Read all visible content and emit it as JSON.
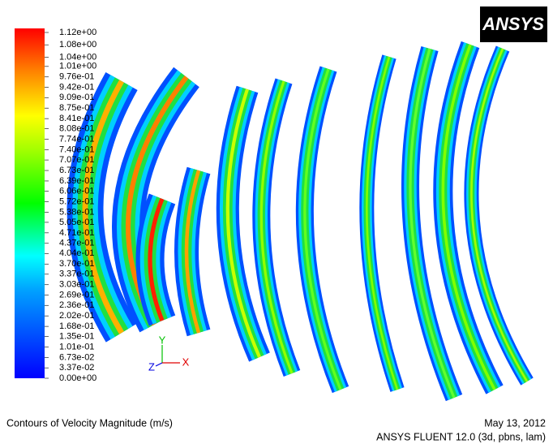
{
  "logo": "ANSYS",
  "colorbar": {
    "ticks": [
      {
        "value": 1.12,
        "label": "1.12e+00"
      },
      {
        "value": 1.08,
        "label": "1.08e+00"
      },
      {
        "value": 1.04,
        "label": "1.04e+00"
      },
      {
        "value": 1.01,
        "label": "1.01e+00"
      },
      {
        "value": 0.976,
        "label": "9.76e-01"
      },
      {
        "value": 0.942,
        "label": "9.42e-01"
      },
      {
        "value": 0.909,
        "label": "9.09e-01"
      },
      {
        "value": 0.875,
        "label": "8.75e-01"
      },
      {
        "value": 0.841,
        "label": "8.41e-01"
      },
      {
        "value": 0.808,
        "label": "8.08e-01"
      },
      {
        "value": 0.774,
        "label": "7.74e-01"
      },
      {
        "value": 0.74,
        "label": "7.40e-01"
      },
      {
        "value": 0.707,
        "label": "7.07e-01"
      },
      {
        "value": 0.673,
        "label": "6.73e-01"
      },
      {
        "value": 0.639,
        "label": "6.39e-01"
      },
      {
        "value": 0.606,
        "label": "6.06e-01"
      },
      {
        "value": 0.572,
        "label": "5.72e-01"
      },
      {
        "value": 0.538,
        "label": "5.38e-01"
      },
      {
        "value": 0.505,
        "label": "5.05e-01"
      },
      {
        "value": 0.471,
        "label": "4.71e-01"
      },
      {
        "value": 0.437,
        "label": "4.37e-01"
      },
      {
        "value": 0.404,
        "label": "4.04e-01"
      },
      {
        "value": 0.37,
        "label": "3.70e-01"
      },
      {
        "value": 0.337,
        "label": "3.37e-01"
      },
      {
        "value": 0.303,
        "label": "3.03e-01"
      },
      {
        "value": 0.269,
        "label": "2.69e-01"
      },
      {
        "value": 0.236,
        "label": "2.36e-01"
      },
      {
        "value": 0.202,
        "label": "2.02e-01"
      },
      {
        "value": 0.168,
        "label": "1.68e-01"
      },
      {
        "value": 0.135,
        "label": "1.35e-01"
      },
      {
        "value": 0.101,
        "label": "1.01e-01"
      },
      {
        "value": 0.0673,
        "label": "6.73e-02"
      },
      {
        "value": 0.0337,
        "label": "3.37e-02"
      },
      {
        "value": 0,
        "label": "0.00e+00"
      }
    ]
  },
  "axes": {
    "x": "X",
    "y": "Y",
    "z": "Z"
  },
  "footer": {
    "title": "Contours of Velocity Magnitude (m/s)",
    "date": "May 13, 2012",
    "software": "ANSYS FLUENT 12.0 (3d, pbns, lam)"
  }
}
